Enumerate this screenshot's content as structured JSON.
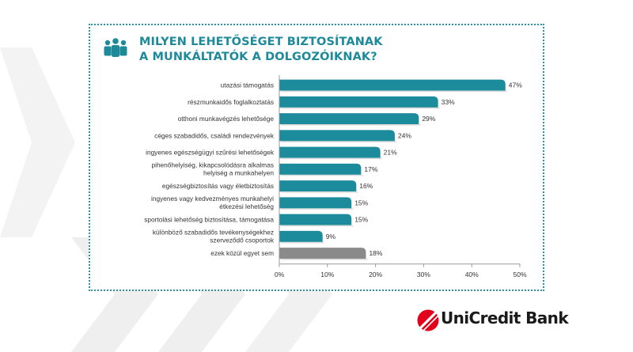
{
  "title_lines": [
    "MILYEN LEHETŐSÉGET BIZTOSÍTANAK",
    "A MUNKÁLTATÓK A DOLGOZÓIKNAK?"
  ],
  "icons": {
    "header": "people-group-icon",
    "logo": "unicredit-logo-icon"
  },
  "brand": {
    "name": "UniCredit Bank",
    "color": "#e2001a"
  },
  "colors": {
    "accent": "#1d8a9a",
    "bar": "#1c8c9c",
    "bar_other": "#8a8a8a",
    "chevron": "#efefef"
  },
  "chart_data": {
    "type": "bar",
    "orientation": "horizontal",
    "title": "MILYEN LEHETŐSÉGET BIZTOSÍTANAK A MUNKÁLTATÓK A DOLGOZÓIKNAK?",
    "categories": [
      "utazási támogatás",
      "részmunkaidős foglalkoztatás",
      "otthoni munkavégzés lehetősége",
      "céges szabadidős, családi rendezvények",
      "ingyenes egészségügyi szűrési lehetőségek",
      "pihenőhelyiség, kikapcsolódásra alkalmas helyiség a munkahelyen",
      "egészségbiztosítás vagy életbiztosítás",
      "ingyenes vagy kedvezményes munkahelyi étkezési lehetőség",
      "sportolási lehetőség biztosítása, támogatása",
      "különböző szabadidős tevékenységekhez szerveződő csoportok",
      "ezek közül egyet sem"
    ],
    "category_lines": [
      [
        "utazási támogatás"
      ],
      [
        "részmunkaidős foglalkoztatás"
      ],
      [
        "otthoni munkavégzés lehetősége"
      ],
      [
        "céges szabadidős, családi rendezvények"
      ],
      [
        "ingyenes egészségügyi szűrési lehetőségek"
      ],
      [
        "pihenőhelyiség, kikapcsolódásra alkalmas",
        "helyiség a munkahelyen"
      ],
      [
        "egészségbiztosítás vagy életbiztosítás"
      ],
      [
        "ingyenes vagy kedvezményes munkahelyi",
        "étkezési lehetőség"
      ],
      [
        "sportolási lehetőség biztosítása, támogatása"
      ],
      [
        "különböző szabadidős tevékenységekhez",
        "szerveződő csoportok"
      ],
      [
        "ezek közül egyet sem"
      ]
    ],
    "values": [
      47,
      33,
      29,
      24,
      21,
      17,
      16,
      15,
      15,
      9,
      18
    ],
    "value_labels": [
      "47%",
      "33%",
      "29%",
      "24%",
      "21%",
      "17%",
      "16%",
      "15%",
      "15%",
      "9%",
      "18%"
    ],
    "highlight_last_gray": true,
    "xlim": [
      0,
      50
    ],
    "xticks": [
      0,
      10,
      20,
      30,
      40,
      50
    ],
    "xtick_labels": [
      "0%",
      "10%",
      "20%",
      "30%",
      "40%",
      "50%"
    ],
    "grid": false,
    "legend": "none"
  }
}
